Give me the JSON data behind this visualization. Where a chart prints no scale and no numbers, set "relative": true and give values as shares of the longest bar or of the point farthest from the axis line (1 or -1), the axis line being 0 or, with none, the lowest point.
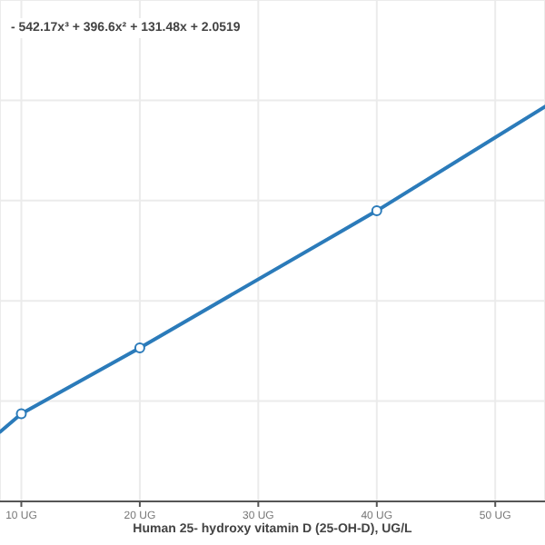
{
  "chart_data": {
    "type": "line",
    "relative": true,
    "xlabel": "Human 25- hydroxy vitamin D (25-OH-D), UG/L",
    "xlim": [
      8.2,
      54.2
    ],
    "xticks": [
      {
        "value": 10,
        "label": "10 UG"
      },
      {
        "value": 20,
        "label": "20 UG"
      },
      {
        "value": 30,
        "label": "30 UG"
      },
      {
        "value": 40,
        "label": "40 UG"
      },
      {
        "value": 50,
        "label": "50 UG"
      }
    ],
    "grid": true,
    "annotations": [
      "- 542.17x³ + 396.6x² + 131.48x + 2.0519"
    ],
    "series": [
      {
        "marker": "none",
        "color": "#2b7bba",
        "x": [
          8.2,
          10,
          20,
          40,
          54.2
        ],
        "values": [
          0.176,
          0.222,
          0.389,
          0.736,
          1.0
        ]
      },
      {
        "type": "scatter",
        "marker": "circle",
        "color": "#2b7bba",
        "x": [
          10,
          20,
          40
        ],
        "values": [
          0.222,
          0.389,
          0.736
        ]
      }
    ]
  }
}
